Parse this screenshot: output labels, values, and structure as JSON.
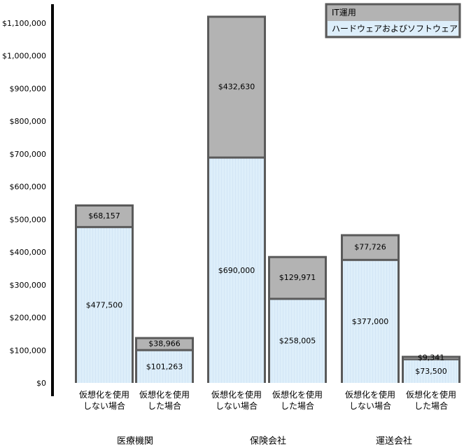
{
  "chart_data": {
    "type": "bar",
    "stacked": true,
    "ylim": [
      0,
      1150000
    ],
    "y_ticks": [
      {
        "value": 0,
        "label": "$0"
      },
      {
        "value": 100000,
        "label": "$100,000"
      },
      {
        "value": 200000,
        "label": "$200,000"
      },
      {
        "value": 300000,
        "label": "$300,000"
      },
      {
        "value": 400000,
        "label": "$400,000"
      },
      {
        "value": 500000,
        "label": "$500,000"
      },
      {
        "value": 600000,
        "label": "$600,000"
      },
      {
        "value": 700000,
        "label": "$700,000"
      },
      {
        "value": 800000,
        "label": "$800,000"
      },
      {
        "value": 900000,
        "label": "$900,000"
      },
      {
        "value": 1000000,
        "label": "$1,000,000"
      },
      {
        "value": 1100000,
        "label": "$1,100,000"
      }
    ],
    "groups": [
      "医療機関",
      "保険会社",
      "運送会社"
    ],
    "categories": [
      [
        "仮想化を使用",
        "しない場合"
      ],
      [
        "仮想化を使用",
        "した場合"
      ],
      [
        "仮想化を使用",
        "しない場合"
      ],
      [
        "仮想化を使用",
        "した場合"
      ],
      [
        "仮想化を使用",
        "しない場合"
      ],
      [
        "仮想化を使用",
        "した場合"
      ]
    ],
    "series": [
      {
        "name": "ハードウェアおよびソフトウェア",
        "color": "#ddeefa",
        "values": [
          477500,
          101263,
          690000,
          258005,
          377000,
          73500
        ],
        "labels": [
          "$477,500",
          "$101,263",
          "$690,000",
          "$258,005",
          "$377,000",
          "$73,500"
        ]
      },
      {
        "name": "IT運用",
        "color": "#b3b3b3",
        "values": [
          68157,
          38966,
          432630,
          129971,
          77726,
          9341
        ],
        "labels": [
          "$68,157",
          "$38,966",
          "$432,630",
          "$129,971",
          "$77,726",
          "$9,341"
        ]
      }
    ],
    "legend": {
      "position": "top-right",
      "items": [
        {
          "label": "IT運用",
          "color": "#b3b3b3"
        },
        {
          "label": "ハードウェアおよびソフトウェア",
          "color": "#ddeefa"
        }
      ]
    }
  }
}
